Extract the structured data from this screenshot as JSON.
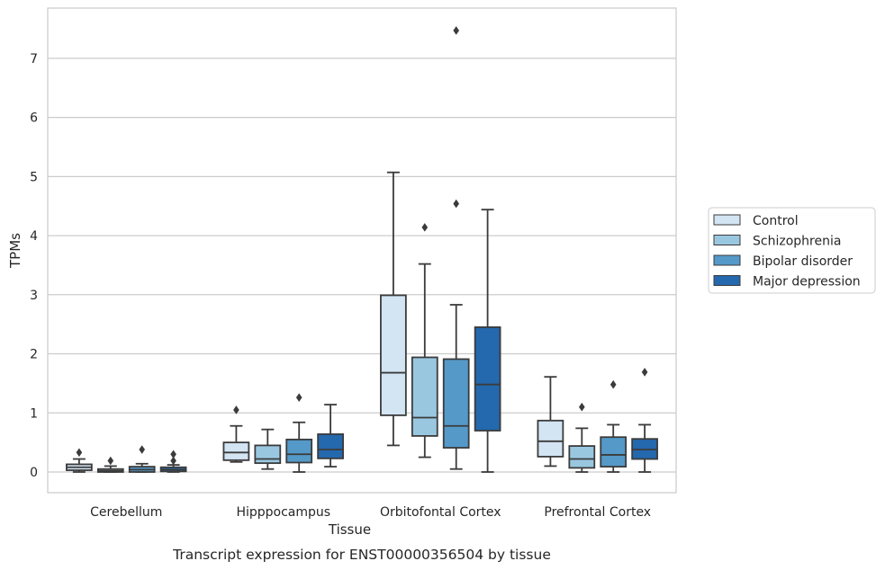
{
  "chart_data": {
    "type": "box",
    "caption": "Transcript expression for ENST00000356504 by tissue",
    "xlabel": "Tissue",
    "ylabel": "TPMs",
    "ylim": [
      -0.35,
      7.85
    ],
    "yticks": [
      0,
      1,
      2,
      3,
      4,
      5,
      6,
      7
    ],
    "grid": "horizontal",
    "legend_position": "right",
    "categories": [
      "Cerebellum",
      "Hipppocampus",
      "Orbitofontal Cortex",
      "Prefrontal Cortex"
    ],
    "series": [
      {
        "name": "Control",
        "color": "#d3e4f3",
        "boxes": [
          {
            "whislo": 0.0,
            "q1": 0.03,
            "med": 0.08,
            "q3": 0.13,
            "whishi": 0.22,
            "fliers": [
              0.33
            ]
          },
          {
            "whislo": 0.17,
            "q1": 0.2,
            "med": 0.33,
            "q3": 0.5,
            "whishi": 0.78,
            "fliers": [
              1.05
            ]
          },
          {
            "whislo": 0.45,
            "q1": 0.96,
            "med": 1.68,
            "q3": 2.99,
            "whishi": 5.07,
            "fliers": []
          },
          {
            "whislo": 0.1,
            "q1": 0.26,
            "med": 0.52,
            "q3": 0.87,
            "whishi": 1.61,
            "fliers": []
          }
        ]
      },
      {
        "name": "Schizophrenia",
        "color": "#9ac7e0",
        "boxes": [
          {
            "whislo": 0.0,
            "q1": 0.0,
            "med": 0.02,
            "q3": 0.05,
            "whishi": 0.1,
            "fliers": [
              0.19
            ]
          },
          {
            "whislo": 0.05,
            "q1": 0.15,
            "med": 0.22,
            "q3": 0.45,
            "whishi": 0.72,
            "fliers": []
          },
          {
            "whislo": 0.25,
            "q1": 0.61,
            "med": 0.92,
            "q3": 1.94,
            "whishi": 3.52,
            "fliers": [
              4.14
            ]
          },
          {
            "whislo": 0.0,
            "q1": 0.07,
            "med": 0.22,
            "q3": 0.44,
            "whishi": 0.74,
            "fliers": [
              1.1
            ]
          }
        ]
      },
      {
        "name": "Bipolar disorder",
        "color": "#5499c8",
        "boxes": [
          {
            "whislo": 0.0,
            "q1": 0.0,
            "med": 0.04,
            "q3": 0.09,
            "whishi": 0.14,
            "fliers": [
              0.38
            ]
          },
          {
            "whislo": 0.0,
            "q1": 0.16,
            "med": 0.3,
            "q3": 0.55,
            "whishi": 0.84,
            "fliers": [
              1.26
            ]
          },
          {
            "whislo": 0.05,
            "q1": 0.41,
            "med": 0.78,
            "q3": 1.91,
            "whishi": 2.83,
            "fliers": [
              4.54,
              7.47
            ]
          },
          {
            "whislo": 0.0,
            "q1": 0.09,
            "med": 0.29,
            "q3": 0.59,
            "whishi": 0.8,
            "fliers": [
              1.48
            ]
          }
        ]
      },
      {
        "name": "Major depression",
        "color": "#2468ae",
        "boxes": [
          {
            "whislo": 0.0,
            "q1": 0.01,
            "med": 0.04,
            "q3": 0.08,
            "whishi": 0.12,
            "fliers": [
              0.3,
              0.19
            ]
          },
          {
            "whislo": 0.09,
            "q1": 0.23,
            "med": 0.38,
            "q3": 0.64,
            "whishi": 1.14,
            "fliers": []
          },
          {
            "whislo": 0.0,
            "q1": 0.7,
            "med": 1.48,
            "q3": 2.45,
            "whishi": 4.44,
            "fliers": []
          },
          {
            "whislo": 0.0,
            "q1": 0.22,
            "med": 0.38,
            "q3": 0.56,
            "whishi": 0.8,
            "fliers": [
              1.69
            ]
          }
        ]
      }
    ]
  }
}
